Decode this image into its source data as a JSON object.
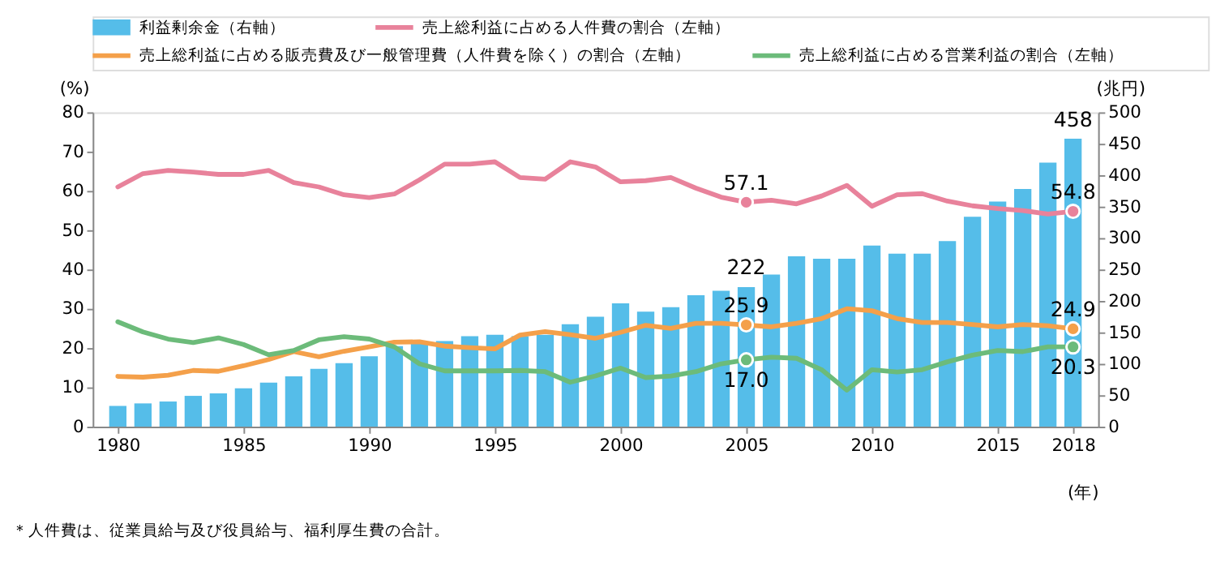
{
  "chart_data": {
    "type": "bar",
    "xlabel": "(年)",
    "ylabel": "(%)",
    "y2label": "(兆円)",
    "legend": "top",
    "grid": false,
    "line_style": "solid",
    "annotations": [
      "＊人件費は、従業員給与及び役員給与、福利厚生費の合計。"
    ],
    "x": [
      1980,
      1981,
      1982,
      1983,
      1984,
      1985,
      1986,
      1987,
      1988,
      1989,
      1990,
      1991,
      1992,
      1993,
      1994,
      1995,
      1996,
      1997,
      1998,
      1999,
      2000,
      2001,
      2002,
      2003,
      2004,
      2005,
      2006,
      2007,
      2008,
      2009,
      2010,
      2011,
      2012,
      2013,
      2014,
      2015,
      2016,
      2017,
      2018
    ],
    "xlim": [
      1979,
      2019
    ],
    "xticks": [
      1980,
      1985,
      1990,
      1995,
      2000,
      2005,
      2010,
      2015,
      2018
    ],
    "ylim": [
      0,
      80
    ],
    "yticks": [
      0,
      10,
      20,
      30,
      40,
      50,
      60,
      70,
      80
    ],
    "y2lim": [
      0,
      500
    ],
    "y2ticks": [
      0,
      50,
      100,
      150,
      200,
      250,
      300,
      350,
      400,
      450,
      500
    ],
    "series": [
      {
        "name": "利益剰余金（右軸）",
        "axis": "y2",
        "color": "#55bde9",
        "values": [
          33,
          37,
          40,
          49,
          53,
          61,
          70,
          80,
          92,
          101,
          112,
          128,
          133,
          136,
          144,
          146,
          144,
          146,
          163,
          175,
          196,
          183,
          190,
          209,
          216,
          222,
          242,
          271,
          267,
          267,
          288,
          275,
          275,
          295,
          334,
          358,
          378,
          420,
          458
        ],
        "value_labels": [
          null,
          null,
          null,
          null,
          null,
          null,
          null,
          null,
          null,
          null,
          null,
          null,
          null,
          null,
          null,
          null,
          null,
          null,
          null,
          null,
          null,
          null,
          null,
          null,
          null,
          "222",
          null,
          null,
          null,
          null,
          null,
          null,
          null,
          null,
          null,
          null,
          null,
          null,
          "458"
        ]
      },
      {
        "name": "売上総利益に占める人件費の割合（左軸）",
        "type": "line",
        "axis": "y",
        "color": "#e8829b",
        "values": [
          61.0,
          64.4,
          65.2,
          64.8,
          64.2,
          64.2,
          65.2,
          62.1,
          61.0,
          59.0,
          58.3,
          59.2,
          62.8,
          66.8,
          66.8,
          67.4,
          63.4,
          63.0,
          67.4,
          66.1,
          62.3,
          62.6,
          63.4,
          60.7,
          58.4,
          57.1,
          57.6,
          56.7,
          58.7,
          61.4,
          56.1,
          59.0,
          59.3,
          57.4,
          56.2,
          55.5,
          55.0,
          54.1,
          54.8
        ],
        "value_labels": [
          null,
          null,
          null,
          null,
          null,
          null,
          null,
          null,
          null,
          null,
          null,
          null,
          null,
          null,
          null,
          null,
          null,
          null,
          null,
          null,
          null,
          null,
          null,
          null,
          null,
          "57.1",
          null,
          null,
          null,
          null,
          null,
          null,
          null,
          null,
          null,
          null,
          null,
          null,
          "54.8"
        ]
      },
      {
        "name": "売上総利益に占める販売費及び一般管理費（人件費を除く）の割合（左軸）",
        "type": "line",
        "axis": "y",
        "color": "#f4a04a",
        "values": [
          12.8,
          12.6,
          13.1,
          14.3,
          14.1,
          15.5,
          17.1,
          19.1,
          17.8,
          19.2,
          20.3,
          21.5,
          21.6,
          20.5,
          20.1,
          19.8,
          23.3,
          24.2,
          23.4,
          22.5,
          24.0,
          25.8,
          25.0,
          26.3,
          26.3,
          25.9,
          25.4,
          26.3,
          27.5,
          30.0,
          29.5,
          27.5,
          26.5,
          26.5,
          26.0,
          25.4,
          26.0,
          25.7,
          24.9
        ],
        "value_labels": [
          null,
          null,
          null,
          null,
          null,
          null,
          null,
          null,
          null,
          null,
          null,
          null,
          null,
          null,
          null,
          null,
          null,
          null,
          null,
          null,
          null,
          null,
          null,
          null,
          null,
          "25.9",
          null,
          null,
          null,
          null,
          null,
          null,
          null,
          null,
          null,
          null,
          null,
          null,
          "24.9"
        ]
      },
      {
        "name": "売上総利益に占める営業利益の割合（左軸）",
        "type": "line",
        "axis": "y",
        "color": "#6cbb7a",
        "values": [
          26.7,
          24.1,
          22.3,
          21.4,
          22.6,
          20.9,
          18.3,
          19.4,
          22.1,
          22.9,
          22.3,
          20.3,
          16.0,
          14.2,
          14.2,
          14.2,
          14.3,
          14.0,
          11.3,
          12.9,
          14.9,
          12.5,
          12.9,
          14.0,
          16.0,
          17.0,
          17.7,
          17.4,
          14.5,
          9.3,
          14.5,
          13.9,
          14.5,
          16.5,
          18.2,
          19.4,
          19.1,
          20.3,
          20.3
        ],
        "value_labels": [
          null,
          null,
          null,
          null,
          null,
          null,
          null,
          null,
          null,
          null,
          null,
          null,
          null,
          null,
          null,
          null,
          null,
          null,
          null,
          null,
          null,
          null,
          null,
          null,
          null,
          "17.0",
          null,
          null,
          null,
          null,
          null,
          null,
          null,
          null,
          null,
          null,
          null,
          null,
          "20.3"
        ]
      }
    ]
  }
}
